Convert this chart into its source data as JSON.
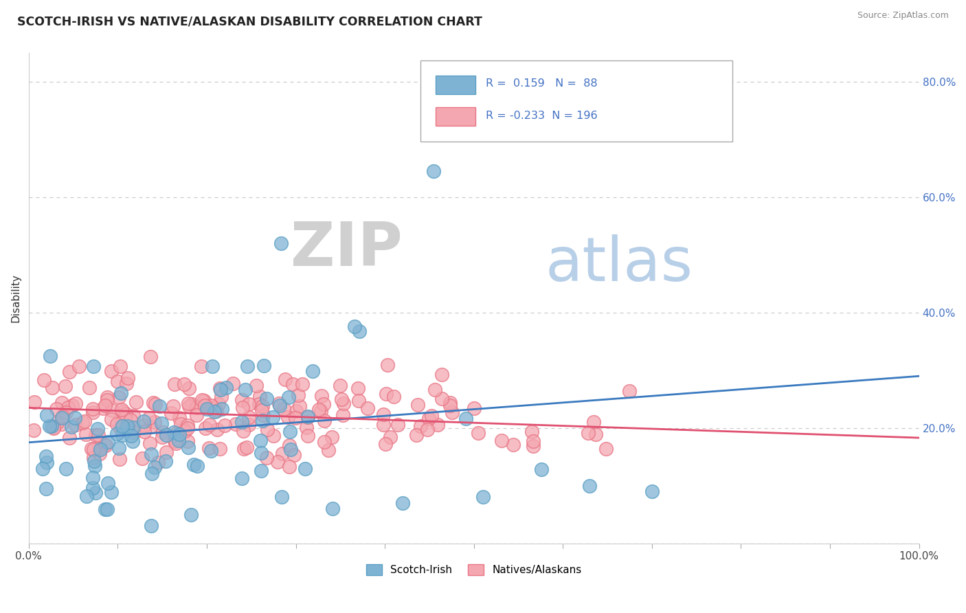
{
  "title": "SCOTCH-IRISH VS NATIVE/ALASKAN DISABILITY CORRELATION CHART",
  "source": "Source: ZipAtlas.com",
  "ylabel": "Disability",
  "xlim": [
    0,
    1
  ],
  "ylim": [
    0,
    0.85
  ],
  "blue_color": "#7fb3d3",
  "blue_edge_color": "#5a9fc4",
  "pink_color": "#f4a7b0",
  "pink_edge_color": "#e87585",
  "blue_line_color": "#3a7abf",
  "pink_line_color": "#e05070",
  "r_blue": 0.159,
  "n_blue": 88,
  "r_pink": -0.233,
  "n_pink": 196,
  "legend_label_blue": "Scotch-Irish",
  "legend_label_pink": "Natives/Alaskans",
  "watermark_zip": "ZIP",
  "watermark_atlas": "atlas",
  "blue_line_intercept": 0.175,
  "blue_line_slope": 0.115,
  "pink_line_intercept": 0.235,
  "pink_line_slope": -0.052
}
